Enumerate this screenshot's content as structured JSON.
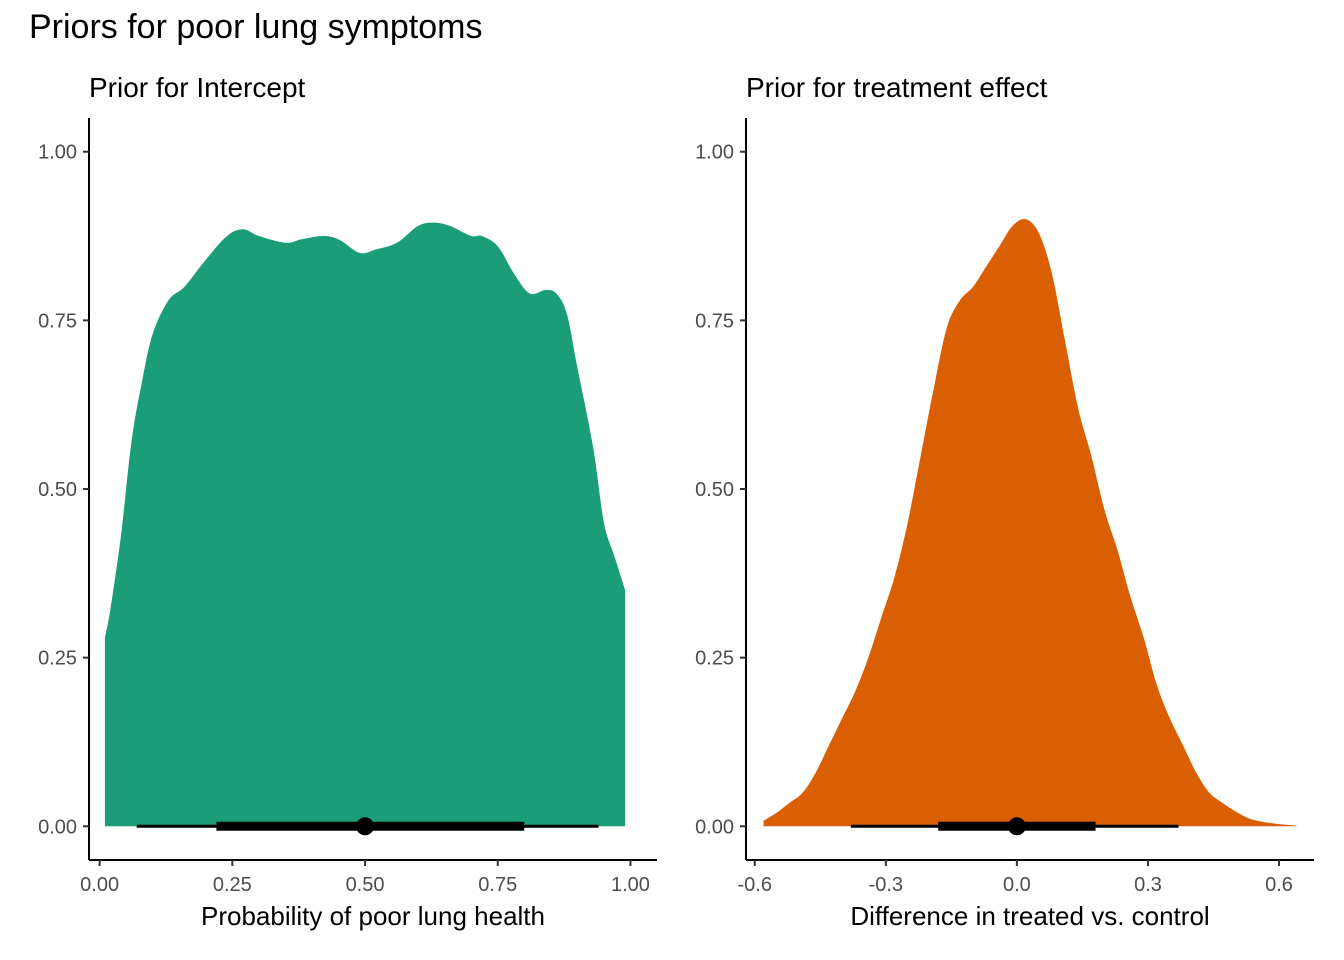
{
  "title": "Priors for poor lung symptoms",
  "chart_data": [
    {
      "type": "area",
      "subtitle": "Prior for Intercept",
      "xlabel": "Probability of poor lung health",
      "ylabel": "",
      "color": "#1B9E77",
      "xlim": [
        -0.02,
        1.05
      ],
      "ylim": [
        -0.05,
        1.05
      ],
      "x_ticks": [
        0,
        0.25,
        0.5,
        0.75,
        1
      ],
      "x_tick_labels": [
        "0.00",
        "0.25",
        "0.50",
        "0.75",
        "1.00"
      ],
      "y_ticks": [
        0,
        0.25,
        0.5,
        0.75,
        1
      ],
      "y_tick_labels": [
        "0.00",
        "0.25",
        "0.50",
        "0.75",
        "1.00"
      ],
      "grid": false,
      "density": {
        "x": [
          0.01,
          0.02,
          0.04,
          0.06,
          0.08,
          0.1,
          0.13,
          0.16,
          0.2,
          0.24,
          0.27,
          0.3,
          0.35,
          0.38,
          0.42,
          0.45,
          0.49,
          0.52,
          0.56,
          0.6,
          0.63,
          0.66,
          0.7,
          0.72,
          0.75,
          0.78,
          0.81,
          0.84,
          0.86,
          0.88,
          0.9,
          0.93,
          0.95,
          0.97,
          0.99
        ],
        "y": [
          0.28,
          0.32,
          0.43,
          0.57,
          0.66,
          0.73,
          0.78,
          0.8,
          0.84,
          0.875,
          0.885,
          0.875,
          0.865,
          0.87,
          0.875,
          0.87,
          0.85,
          0.855,
          0.865,
          0.89,
          0.895,
          0.89,
          0.875,
          0.875,
          0.86,
          0.82,
          0.79,
          0.795,
          0.79,
          0.76,
          0.68,
          0.56,
          0.45,
          0.4,
          0.35
        ]
      },
      "point_interval": {
        "point": 0.5,
        "inner": [
          0.22,
          0.8
        ],
        "outer": [
          0.07,
          0.94
        ]
      }
    },
    {
      "type": "area",
      "subtitle": "Prior for treatment effect",
      "xlabel": "Difference in treated vs. control",
      "ylabel": "",
      "color": "#D95F02",
      "xlim": [
        -0.62,
        0.68
      ],
      "ylim": [
        -0.05,
        1.05
      ],
      "x_ticks": [
        -0.6,
        -0.3,
        0,
        0.3,
        0.6
      ],
      "x_tick_labels": [
        "-0.6",
        "-0.3",
        "0.0",
        "0.3",
        "0.6"
      ],
      "y_ticks": [
        0,
        0.25,
        0.5,
        0.75,
        1
      ],
      "y_tick_labels": [
        "0.00",
        "0.25",
        "0.50",
        "0.75",
        "1.00"
      ],
      "grid": false,
      "density": {
        "x": [
          -0.58,
          -0.55,
          -0.52,
          -0.49,
          -0.46,
          -0.43,
          -0.4,
          -0.37,
          -0.34,
          -0.31,
          -0.28,
          -0.25,
          -0.22,
          -0.19,
          -0.16,
          -0.13,
          -0.1,
          -0.07,
          -0.04,
          -0.01,
          0.02,
          0.05,
          0.08,
          0.11,
          0.14,
          0.17,
          0.2,
          0.23,
          0.26,
          0.29,
          0.32,
          0.35,
          0.38,
          0.41,
          0.44,
          0.47,
          0.5,
          0.53,
          0.56,
          0.59,
          0.62,
          0.64
        ],
        "y": [
          0.008,
          0.02,
          0.035,
          0.05,
          0.08,
          0.12,
          0.16,
          0.2,
          0.25,
          0.31,
          0.37,
          0.45,
          0.55,
          0.65,
          0.74,
          0.78,
          0.8,
          0.83,
          0.86,
          0.89,
          0.9,
          0.88,
          0.82,
          0.72,
          0.62,
          0.55,
          0.47,
          0.41,
          0.34,
          0.28,
          0.21,
          0.16,
          0.12,
          0.08,
          0.05,
          0.035,
          0.022,
          0.012,
          0.007,
          0.004,
          0.002,
          0.001
        ]
      },
      "point_interval": {
        "point": 0.0,
        "inner": [
          -0.18,
          0.18
        ],
        "outer": [
          -0.38,
          0.37
        ]
      }
    }
  ]
}
